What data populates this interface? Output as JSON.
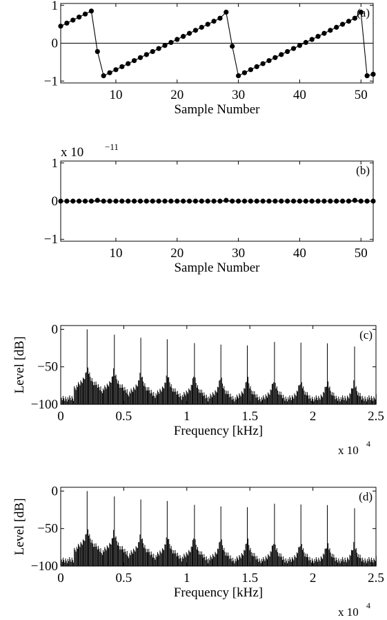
{
  "chart_data": [
    {
      "type": "line",
      "panel_label": "(a)",
      "xlabel": "Sample Number",
      "ylabel": "",
      "xlim": [
        1,
        52
      ],
      "ylim": [
        -1.05,
        1.05
      ],
      "xticks": [
        10,
        20,
        30,
        40,
        50
      ],
      "yticks": [
        -1,
        0,
        1
      ],
      "xtick_labels": [
        "10",
        "20",
        "30",
        "40",
        "50"
      ],
      "ytick_labels": [
        "−1",
        "0",
        "1"
      ],
      "markers": true,
      "x": [
        1,
        2,
        3,
        4,
        5,
        6,
        7,
        8,
        9,
        10,
        11,
        12,
        13,
        14,
        15,
        16,
        17,
        18,
        19,
        20,
        21,
        22,
        23,
        24,
        25,
        26,
        27,
        28,
        29,
        30,
        31,
        32,
        33,
        34,
        35,
        36,
        37,
        38,
        39,
        40,
        41,
        42,
        43,
        44,
        45,
        46,
        47,
        48,
        49,
        50,
        51,
        52
      ],
      "y": [
        0.45,
        0.53,
        0.61,
        0.69,
        0.77,
        0.85,
        -0.22,
        -0.86,
        -0.78,
        -0.7,
        -0.62,
        -0.54,
        -0.46,
        -0.38,
        -0.3,
        -0.22,
        -0.14,
        -0.06,
        0.02,
        0.1,
        0.18,
        0.26,
        0.34,
        0.42,
        0.5,
        0.58,
        0.66,
        0.82,
        -0.08,
        -0.86,
        -0.78,
        -0.7,
        -0.62,
        -0.54,
        -0.46,
        -0.38,
        -0.3,
        -0.22,
        -0.14,
        -0.06,
        0.02,
        0.1,
        0.18,
        0.26,
        0.34,
        0.42,
        0.5,
        0.58,
        0.66,
        0.82,
        -0.86,
        -0.82
      ],
      "grid": false
    },
    {
      "type": "line",
      "panel_label": "(b)",
      "xlabel": "Sample Number",
      "ylabel": "",
      "scale_note": "x 10",
      "scale_exponent": "−11",
      "xlim": [
        1,
        52
      ],
      "ylim": [
        -1.05,
        1.05
      ],
      "xticks": [
        10,
        20,
        30,
        40,
        50
      ],
      "yticks": [
        -1,
        0,
        1
      ],
      "xtick_labels": [
        "10",
        "20",
        "30",
        "40",
        "50"
      ],
      "ytick_labels": [
        "−1",
        "0",
        "1"
      ],
      "markers": true,
      "x": [
        1,
        2,
        3,
        4,
        5,
        6,
        7,
        8,
        9,
        10,
        11,
        12,
        13,
        14,
        15,
        16,
        17,
        18,
        19,
        20,
        21,
        22,
        23,
        24,
        25,
        26,
        27,
        28,
        29,
        30,
        31,
        32,
        33,
        34,
        35,
        36,
        37,
        38,
        39,
        40,
        41,
        42,
        43,
        44,
        45,
        46,
        47,
        48,
        49,
        50,
        51,
        52
      ],
      "y": [
        0,
        0,
        0,
        0,
        0,
        0,
        0.02,
        0,
        0,
        0,
        0,
        0,
        0,
        0,
        0,
        0,
        0,
        0,
        0,
        0,
        0,
        0,
        0,
        0,
        0,
        0,
        0,
        0.02,
        0,
        0,
        0,
        0,
        0,
        0,
        0,
        0,
        0,
        0,
        0,
        0,
        0,
        0,
        0,
        0,
        0,
        0,
        0,
        0,
        0.02,
        0,
        0,
        0
      ],
      "grid": false
    },
    {
      "type": "bar",
      "panel_label": "(c)",
      "xlabel": "Frequency [kHz]",
      "ylabel": "Level [dB]",
      "scale_note": "x 10",
      "scale_exponent": "4",
      "xlim": [
        0,
        2.5
      ],
      "ylim": [
        -100,
        5
      ],
      "xticks": [
        0,
        0.5,
        1,
        1.5,
        2,
        2.5
      ],
      "yticks": [
        -100,
        -50,
        0
      ],
      "xtick_labels": [
        "0",
        "0.5",
        "1",
        "1.5",
        "2",
        "2.5"
      ],
      "ytick_labels": [
        "−100",
        "−50",
        "0"
      ],
      "harmonic_spacing": 0.2117,
      "harmonic_peaks": [
        0,
        -4,
        -8,
        -10,
        -12,
        -14,
        -15,
        -16,
        -17,
        -18,
        -19,
        -20
      ],
      "bin_width": 0.00635,
      "noise_floor": -88,
      "grid": false
    },
    {
      "type": "bar",
      "panel_label": "(d)",
      "xlabel": "Frequency [kHz]",
      "ylabel": "Level [dB]",
      "scale_note": "x 10",
      "scale_exponent": "4",
      "xlim": [
        0,
        2.5
      ],
      "ylim": [
        -100,
        5
      ],
      "xticks": [
        0,
        0.5,
        1,
        1.5,
        2,
        2.5
      ],
      "yticks": [
        -100,
        -50,
        0
      ],
      "xtick_labels": [
        "0",
        "0.5",
        "1",
        "1.5",
        "2",
        "2.5"
      ],
      "ytick_labels": [
        "−100",
        "−50",
        "0"
      ],
      "harmonic_spacing": 0.2117,
      "harmonic_peaks": [
        0,
        -4,
        -8,
        -10,
        -12,
        -14,
        -15,
        -16,
        -17,
        -18,
        -19,
        -20
      ],
      "bin_width": 0.00635,
      "noise_floor": -88,
      "grid": false
    }
  ]
}
